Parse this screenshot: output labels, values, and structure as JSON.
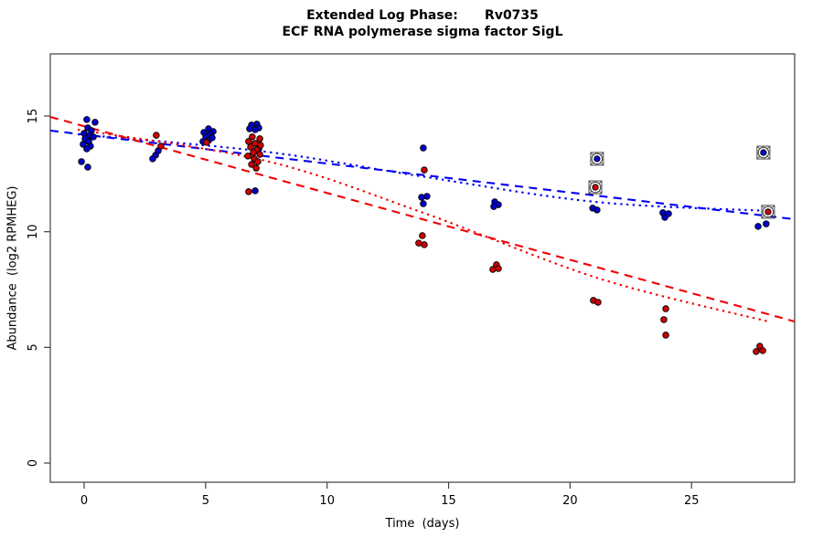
{
  "title": {
    "line1": "Extended Log Phase:      Rv0735",
    "line2": "ECF RNA polymerase sigma factor SigL"
  },
  "axes": {
    "x": {
      "label": "Time  (days)",
      "ticks": [
        0,
        5,
        10,
        15,
        20,
        25
      ]
    },
    "y": {
      "label": "Abundance  (log2 RPMHEG)",
      "ticks": [
        0,
        5,
        10,
        15
      ]
    }
  },
  "chart_data": {
    "type": "scatter",
    "title": "Extended Log Phase: Rv0735",
    "subtitle": "ECF RNA polymerase sigma factor SigL",
    "xlabel": "Time (days)",
    "ylabel": "Abundance (log2 RPMHEG)",
    "xlim": [
      -1.39,
      29.24
    ],
    "ylim": [
      -0.83,
      17.69
    ],
    "grid": false,
    "legend": "none",
    "point_outline": "#000000",
    "outlier_ring_color": "#4a4a4a",
    "series": [
      {
        "name": "condition-blue",
        "color": "#0000CC",
        "marker": "dot",
        "points": [
          [
            0.11,
            14.85
          ],
          [
            0.45,
            14.73
          ],
          [
            0.15,
            14.49
          ],
          [
            0.3,
            14.37
          ],
          [
            0.0,
            14.25
          ],
          [
            0.23,
            14.17
          ],
          [
            0.38,
            14.1
          ],
          [
            0.04,
            14.02
          ],
          [
            0.19,
            13.9
          ],
          [
            -0.04,
            13.78
          ],
          [
            0.26,
            13.7
          ],
          [
            0.11,
            13.58
          ],
          [
            -0.11,
            13.03
          ],
          [
            0.15,
            12.79
          ],
          [
            3.05,
            13.5
          ],
          [
            2.94,
            13.31
          ],
          [
            2.82,
            13.15
          ],
          [
            5.12,
            14.45
          ],
          [
            5.31,
            14.33
          ],
          [
            4.93,
            14.29
          ],
          [
            5.19,
            14.21
          ],
          [
            5.01,
            14.1
          ],
          [
            5.27,
            14.06
          ],
          [
            5.12,
            13.94
          ],
          [
            4.89,
            13.9
          ],
          [
            7.11,
            14.65
          ],
          [
            6.89,
            14.61
          ],
          [
            7.19,
            14.49
          ],
          [
            6.81,
            14.45
          ],
          [
            7.04,
            14.41
          ],
          [
            7.19,
            13.58
          ],
          [
            7.04,
            11.77
          ],
          [
            13.96,
            13.62
          ],
          [
            14.11,
            11.53
          ],
          [
            13.89,
            11.49
          ],
          [
            13.96,
            11.21
          ],
          [
            16.9,
            11.29
          ],
          [
            17.05,
            11.17
          ],
          [
            16.86,
            11.09
          ],
          [
            20.93,
            11.02
          ],
          [
            21.11,
            10.94
          ],
          [
            23.82,
            10.82
          ],
          [
            24.05,
            10.78
          ],
          [
            23.9,
            10.62
          ],
          [
            28.07,
            10.34
          ],
          [
            27.74,
            10.23
          ]
        ]
      },
      {
        "name": "condition-red",
        "color": "#CC0000",
        "marker": "dot",
        "points": [
          [
            2.97,
            14.17
          ],
          [
            3.16,
            13.7
          ],
          [
            5.04,
            13.86
          ],
          [
            6.92,
            14.1
          ],
          [
            7.23,
            14.02
          ],
          [
            6.77,
            13.9
          ],
          [
            7.04,
            13.82
          ],
          [
            7.26,
            13.74
          ],
          [
            6.85,
            13.66
          ],
          [
            7.11,
            13.54
          ],
          [
            6.96,
            13.42
          ],
          [
            7.23,
            13.34
          ],
          [
            6.74,
            13.27
          ],
          [
            7.0,
            13.15
          ],
          [
            7.15,
            13.03
          ],
          [
            6.89,
            12.91
          ],
          [
            7.08,
            12.75
          ],
          [
            6.77,
            11.73
          ],
          [
            14.0,
            12.67
          ],
          [
            13.92,
            9.83
          ],
          [
            13.77,
            9.51
          ],
          [
            14.0,
            9.44
          ],
          [
            16.97,
            8.57
          ],
          [
            17.05,
            8.41
          ],
          [
            16.82,
            8.37
          ],
          [
            20.96,
            7.03
          ],
          [
            21.15,
            6.95
          ],
          [
            23.94,
            6.67
          ],
          [
            23.86,
            6.2
          ],
          [
            23.94,
            5.53
          ],
          [
            27.81,
            5.05
          ],
          [
            27.93,
            4.86
          ],
          [
            27.66,
            4.82
          ]
        ]
      },
      {
        "name": "outliers-blue-circled",
        "color": "#0000CC",
        "marker": "circled",
        "points": [
          [
            21.11,
            13.15
          ],
          [
            27.96,
            13.42
          ]
        ]
      },
      {
        "name": "outliers-red-circled",
        "color": "#CC0000",
        "marker": "circled",
        "points": [
          [
            21.04,
            11.92
          ],
          [
            28.15,
            10.86
          ]
        ]
      }
    ],
    "trend_lines": [
      {
        "name": "blue-dashed-fit",
        "color": "#0000F0",
        "style": "dashed",
        "points": [
          [
            -1.39,
            14.37
          ],
          [
            29.24,
            10.54
          ]
        ]
      },
      {
        "name": "blue-dotted-fit",
        "color": "#0000F0",
        "style": "dotted",
        "points": [
          [
            -0.26,
            14.21
          ],
          [
            7.45,
            13.46
          ],
          [
            13.85,
            12.4
          ],
          [
            21.04,
            11.29
          ],
          [
            28.15,
            10.9
          ]
        ]
      },
      {
        "name": "red-dashed-fit",
        "color": "#F00000",
        "style": "dashed",
        "points": [
          [
            -1.39,
            14.96
          ],
          [
            29.24,
            6.12
          ]
        ]
      },
      {
        "name": "red-dotted-fit",
        "color": "#F00000",
        "style": "dotted",
        "points": [
          [
            -0.26,
            14.41
          ],
          [
            7.45,
            13.07
          ],
          [
            13.85,
            10.86
          ],
          [
            21.19,
            7.98
          ],
          [
            28.15,
            6.12
          ]
        ]
      }
    ]
  }
}
